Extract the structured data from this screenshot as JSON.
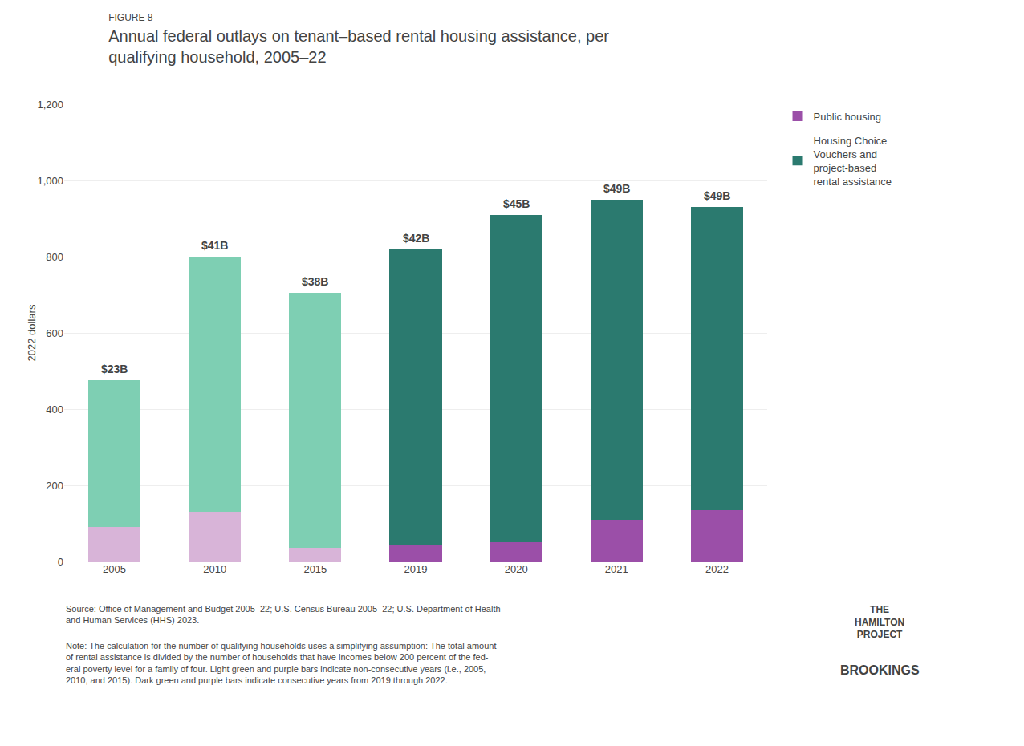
{
  "chart_data": {
    "type": "bar",
    "stacked": true,
    "subtitle": "FIGURE 8",
    "title": "Annual federal outlays on tenant–based rental housing assistance, per\nqualifying household, 2005–22",
    "y_label": "2022 dollars",
    "categories": [
      "2005",
      "2010",
      "2015",
      "2019",
      "2020",
      "2021",
      "2022"
    ],
    "series": [
      {
        "name": "Public housing",
        "color": "#9B4FA8",
        "colors": [
          "#D8B4D8",
          "#D8B4D8",
          "#D8B4D8",
          "#9B4FA8",
          "#9B4FA8",
          "#9B4FA8",
          "#9B4FA8"
        ],
        "values": [
          90,
          130,
          35,
          45,
          50,
          110,
          135
        ]
      },
      {
        "name": "Housing Choice\nVouchers and\nproject-based\nrental assistance",
        "color": "#2B7A6F",
        "colors": [
          "#7ECFB3",
          "#7ECFB3",
          "#7ECFB3",
          "#2B7A6F",
          "#2B7A6F",
          "#2B7A6F",
          "#2B7A6F"
        ],
        "values": [
          385,
          670,
          670,
          775,
          860,
          840,
          795
        ]
      }
    ],
    "ylim": [
      0,
      1200
    ],
    "yticks": [
      0,
      200,
      400,
      600,
      800,
      {
        "value": 1000,
        "label": "1,000"
      },
      {
        "value": 1200,
        "label": "1,200"
      }
    ],
    "grid": true,
    "legend": "right",
    "annotations": [
      {
        "category": "2005",
        "text": "$23B"
      },
      {
        "category": "2010",
        "text": "$41B"
      },
      {
        "category": "2015",
        "text": "$38B"
      },
      {
        "category": "2019",
        "text": "$42B"
      },
      {
        "category": "2020",
        "text": "$45B"
      },
      {
        "category": "2021",
        "text": "$49B"
      },
      {
        "category": "2022",
        "text": "$49B"
      }
    ],
    "footnotes": [
      "Source: Office of Management and Budget 2005–22; U.S. Census Bureau 2005–22; U.S. Department of Health\nand Human Services (HHS) 2023.",
      "Note: The calculation for the number of qualifying households uses a simplifying assumption: The total amount\nof rental assistance is divided by the number of households that have incomes below 200 percent of the fed-\neral poverty level for a family of four. Light green and purple bars indicate non-consecutive years (i.e., 2005,\n2010, and 2015). Dark green and purple bars indicate consecutive years from 2019 through 2022."
    ],
    "credits": [
      "THE\nHAMILTON\nPROJECT",
      "BROOKINGS"
    ]
  }
}
